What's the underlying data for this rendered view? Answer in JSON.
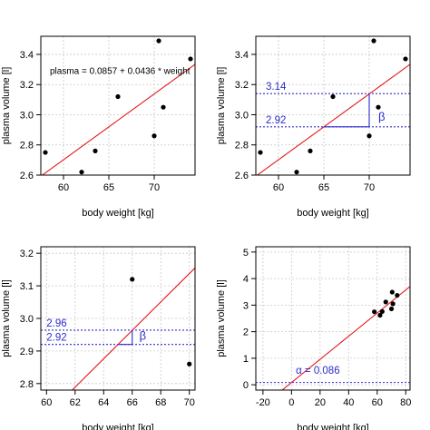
{
  "chart_data": [
    {
      "type": "scatter",
      "xlabel": "body weight [kg]",
      "ylabel": "plasma volume [l]",
      "xlim": [
        57.5,
        74.5
      ],
      "ylim": [
        2.6,
        3.52
      ],
      "xticks": [
        "60",
        "65",
        "70"
      ],
      "yticks": [
        "2.6",
        "2.8",
        "3.0",
        "3.2",
        "3.4"
      ],
      "grid": true,
      "points": {
        "x": [
          58,
          62,
          63.5,
          66,
          70,
          70.5,
          71,
          74
        ],
        "y": [
          2.75,
          2.62,
          2.76,
          3.12,
          2.86,
          3.49,
          3.05,
          3.37
        ]
      },
      "regression_line": {
        "intercept": 0.0857,
        "slope": 0.0436,
        "color": "#e41a1c"
      },
      "annotations": [
        {
          "text": "plasma = 0.0857 + 0.0436 * weight",
          "x": 58.5,
          "y": 3.27
        }
      ],
      "hlines": [],
      "triangle": null
    },
    {
      "type": "scatter",
      "xlabel": "body weight [kg]",
      "ylabel": "plasma volume [l]",
      "xlim": [
        57.5,
        74.5
      ],
      "ylim": [
        2.6,
        3.52
      ],
      "xticks": [
        "60",
        "65",
        "70"
      ],
      "yticks": [
        "2.6",
        "2.8",
        "3.0",
        "3.2",
        "3.4"
      ],
      "grid": true,
      "points": {
        "x": [
          58,
          62,
          63.5,
          66,
          70,
          70.5,
          71,
          74
        ],
        "y": [
          2.75,
          2.62,
          2.76,
          3.12,
          2.86,
          3.49,
          3.05,
          3.37
        ]
      },
      "regression_line": {
        "intercept": 0.0857,
        "slope": 0.0436,
        "color": "#e41a1c"
      },
      "hlines": [
        {
          "y": 3.14,
          "label": "3.14",
          "label_x": 58.6
        },
        {
          "y": 2.92,
          "label": "2.92",
          "label_x": 58.6
        }
      ],
      "triangle": {
        "x1": 65,
        "x2": 70,
        "y1": 2.92,
        "y2": 3.14,
        "label": "β",
        "label_x": 71.0,
        "label_y": 2.96
      },
      "annotations": []
    },
    {
      "type": "scatter",
      "xlabel": "body weight [kg]",
      "ylabel": "plasma volume [l]",
      "xlim": [
        59.6,
        70.4
      ],
      "ylim": [
        2.78,
        3.22
      ],
      "xticks": [
        "60",
        "62",
        "64",
        "66",
        "68",
        "70"
      ],
      "yticks": [
        "2.8",
        "2.9",
        "3.0",
        "3.1",
        "3.2"
      ],
      "grid": true,
      "points": {
        "x": [
          66,
          70
        ],
        "y": [
          3.12,
          2.86
        ]
      },
      "regression_line": {
        "intercept": 0.0857,
        "slope": 0.0436,
        "color": "#e41a1c"
      },
      "hlines": [
        {
          "y": 2.964,
          "label": "2.96",
          "label_x": 60.0
        },
        {
          "y": 2.92,
          "label": "2.92",
          "label_x": 60.0
        }
      ],
      "triangle": {
        "x1": 65,
        "x2": 66,
        "y1": 2.92,
        "y2": 2.964,
        "label": "β",
        "label_x": 66.5,
        "label_y": 2.935
      },
      "annotations": []
    },
    {
      "type": "scatter",
      "xlabel": "body weight [kg]",
      "ylabel": "plasma volume [l]",
      "xlim": [
        -25,
        83
      ],
      "ylim": [
        -0.2,
        5.2
      ],
      "xticks": [
        "-20",
        "0",
        "20",
        "40",
        "60",
        "80"
      ],
      "yticks": [
        "0",
        "1",
        "2",
        "3",
        "4",
        "5"
      ],
      "grid": true,
      "points": {
        "x": [
          58,
          62,
          63.5,
          66,
          70,
          70.5,
          71,
          74
        ],
        "y": [
          2.75,
          2.62,
          2.76,
          3.12,
          2.86,
          3.49,
          3.05,
          3.37
        ]
      },
      "regression_line": {
        "intercept": 0.0857,
        "slope": 0.0436,
        "color": "#e41a1c"
      },
      "hlines": [
        {
          "y": 0.086,
          "label": "",
          "label_x": -22
        }
      ],
      "triangle": null,
      "annotations": [
        {
          "text": "α  = 0.086",
          "x": 3,
          "y": 0.42
        }
      ]
    }
  ]
}
